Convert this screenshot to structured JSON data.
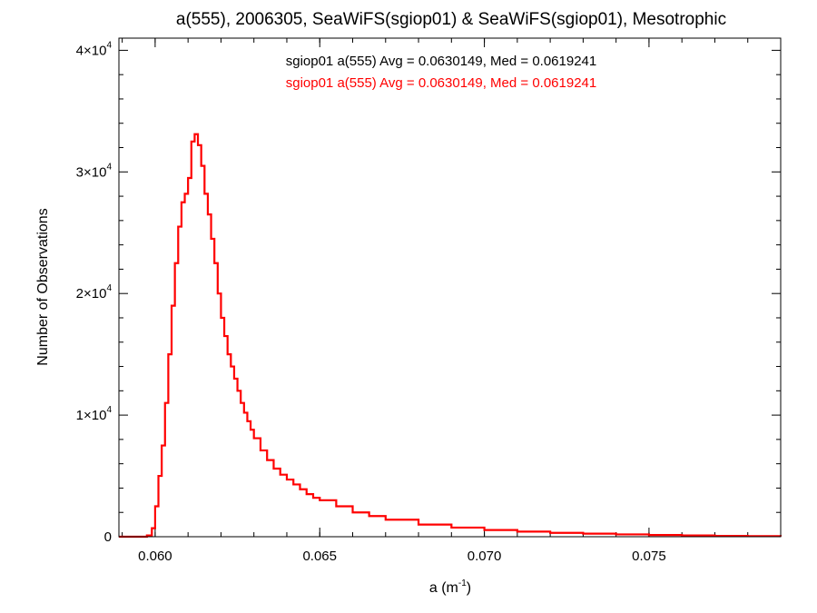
{
  "chart_data": {
    "type": "line",
    "title": "a(555), 2006305, SeaWiFS(sgiop01) & SeaWiFS(sgiop01), Mesotrophic",
    "xlabel": "a (m",
    "xlabel_sup": "-1",
    "xlabel_end": ")",
    "ylabel": "Number of Observations",
    "xlim": [
      0.0589,
      0.079
    ],
    "ylim": [
      0,
      41000
    ],
    "x_ticks": [
      {
        "value": 0.06,
        "label": "0.060"
      },
      {
        "value": 0.065,
        "label": "0.065"
      },
      {
        "value": 0.07,
        "label": "0.070"
      },
      {
        "value": 0.075,
        "label": "0.075"
      }
    ],
    "y_ticks": [
      {
        "value": 0,
        "base": "0",
        "exp": ""
      },
      {
        "value": 10000,
        "base": "1×10",
        "exp": "4"
      },
      {
        "value": 20000,
        "base": "2×10",
        "exp": "4"
      },
      {
        "value": 30000,
        "base": "3×10",
        "exp": "4"
      },
      {
        "value": 40000,
        "base": "4×10",
        "exp": "4"
      }
    ],
    "grid": false,
    "legend_position": "top-center",
    "series": [
      {
        "name": "sgiop01 a(555) Avg = 0.0630149, Med = 0.0619241",
        "color": "#000000",
        "x": [
          0.0589,
          0.0595,
          0.05975,
          0.0599,
          0.06,
          0.0601,
          0.0602,
          0.0603,
          0.0604,
          0.0605,
          0.0606,
          0.0607,
          0.0608,
          0.0609,
          0.061,
          0.0611,
          0.0612,
          0.0613,
          0.0614,
          0.0615,
          0.0616,
          0.0617,
          0.0618,
          0.0619,
          0.062,
          0.0621,
          0.0622,
          0.0623,
          0.0624,
          0.0625,
          0.0626,
          0.0627,
          0.0628,
          0.0629,
          0.063,
          0.0632,
          0.0634,
          0.0636,
          0.0638,
          0.064,
          0.0642,
          0.0644,
          0.0646,
          0.0648,
          0.065,
          0.0655,
          0.066,
          0.0665,
          0.067,
          0.068,
          0.069,
          0.07,
          0.071,
          0.072,
          0.073,
          0.074,
          0.075,
          0.076,
          0.077,
          0.078,
          0.079
        ],
        "y": [
          0,
          0,
          100,
          700,
          2500,
          5000,
          7500,
          11000,
          15000,
          19000,
          22500,
          25500,
          27500,
          28200,
          29500,
          32500,
          33100,
          32200,
          30500,
          28200,
          26500,
          24500,
          22500,
          20000,
          18000,
          16500,
          15000,
          14000,
          13000,
          12000,
          11000,
          10200,
          9500,
          8800,
          8100,
          7100,
          6300,
          5600,
          5100,
          4700,
          4300,
          3900,
          3500,
          3200,
          3000,
          2500,
          2000,
          1700,
          1400,
          1000,
          750,
          550,
          420,
          320,
          250,
          190,
          140,
          100,
          70,
          45,
          30
        ]
      },
      {
        "name": "sgiop01 a(555) Avg = 0.0630149, Med = 0.0619241",
        "color": "#ff0000",
        "x": [
          0.0589,
          0.0595,
          0.05975,
          0.0599,
          0.06,
          0.0601,
          0.0602,
          0.0603,
          0.0604,
          0.0605,
          0.0606,
          0.0607,
          0.0608,
          0.0609,
          0.061,
          0.0611,
          0.0612,
          0.0613,
          0.0614,
          0.0615,
          0.0616,
          0.0617,
          0.0618,
          0.0619,
          0.062,
          0.0621,
          0.0622,
          0.0623,
          0.0624,
          0.0625,
          0.0626,
          0.0627,
          0.0628,
          0.0629,
          0.063,
          0.0632,
          0.0634,
          0.0636,
          0.0638,
          0.064,
          0.0642,
          0.0644,
          0.0646,
          0.0648,
          0.065,
          0.0655,
          0.066,
          0.0665,
          0.067,
          0.068,
          0.069,
          0.07,
          0.071,
          0.072,
          0.073,
          0.074,
          0.075,
          0.076,
          0.077,
          0.078,
          0.079
        ],
        "y": [
          0,
          0,
          100,
          700,
          2500,
          5000,
          7500,
          11000,
          15000,
          19000,
          22500,
          25500,
          27500,
          28200,
          29500,
          32500,
          33100,
          32200,
          30500,
          28200,
          26500,
          24500,
          22500,
          20000,
          18000,
          16500,
          15000,
          14000,
          13000,
          12000,
          11000,
          10200,
          9500,
          8800,
          8100,
          7100,
          6300,
          5600,
          5100,
          4700,
          4300,
          3900,
          3500,
          3200,
          3000,
          2500,
          2000,
          1700,
          1400,
          1000,
          750,
          550,
          420,
          320,
          250,
          190,
          140,
          100,
          70,
          45,
          30
        ]
      }
    ]
  }
}
